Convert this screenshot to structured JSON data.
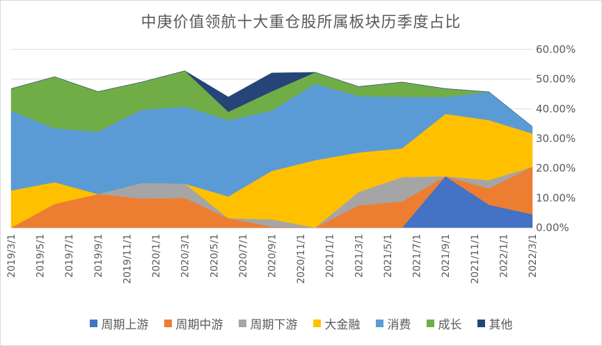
{
  "chart_data": {
    "type": "area",
    "title": "中庚价值领航十大重仓股所属板块历季度占比",
    "xlabel": "",
    "ylabel": "",
    "ylim": [
      0,
      60
    ],
    "y_ticks": [
      "0.00%",
      "10.00%",
      "20.00%",
      "30.00%",
      "40.00%",
      "50.00%",
      "60.00%"
    ],
    "x_dates": [
      "2019/3/1",
      "2019/6/1",
      "2019/9/1",
      "2019/12/1",
      "2020/3/1",
      "2020/6/1",
      "2020/9/1",
      "2020/12/1",
      "2021/3/1",
      "2021/6/1",
      "2021/9/1",
      "2021/12/1",
      "2022/3/1"
    ],
    "x_ticks": [
      "2019/3/1",
      "2019/5/1",
      "2019/7/1",
      "2019/9/1",
      "2019/11/1",
      "2020/1/1",
      "2020/3/1",
      "2020/5/1",
      "2020/7/1",
      "2020/9/1",
      "2020/11/1",
      "2021/1/1",
      "2021/3/1",
      "2021/5/1",
      "2021/7/1",
      "2021/9/1",
      "2021/11/1",
      "2022/1/1",
      "2022/3/1"
    ],
    "grid": true,
    "legend_position": "bottom",
    "series": [
      {
        "name": "周期上游",
        "color": "#4472C4",
        "values": [
          0,
          0,
          0,
          0,
          0,
          0,
          0,
          0,
          0,
          0,
          17.3,
          7.7,
          4.5
        ]
      },
      {
        "name": "周期中游",
        "color": "#ED7D31",
        "values": [
          0,
          8,
          11.3,
          9.8,
          10,
          3.2,
          0.3,
          0,
          7.5,
          8.8,
          0,
          5.5,
          16
        ]
      },
      {
        "name": "周期下游",
        "color": "#A5A5A5",
        "values": [
          0,
          0,
          0,
          5.2,
          4.8,
          0,
          2.5,
          0,
          4.5,
          8.2,
          0,
          2.8,
          0
        ]
      },
      {
        "name": "大金融",
        "color": "#FFC000",
        "values": [
          12.5,
          7.3,
          0,
          0,
          0,
          7.3,
          16.3,
          22.7,
          13.3,
          9.7,
          21,
          20.2,
          11.2
        ]
      },
      {
        "name": "消费",
        "color": "#5B9BD5",
        "values": [
          26.8,
          18.2,
          21,
          24.7,
          26,
          25.7,
          20.3,
          25.8,
          19,
          17.3,
          5.7,
          9.5,
          2.3
        ]
      },
      {
        "name": "成长",
        "color": "#70AD47",
        "values": [
          7.5,
          17.3,
          13.5,
          9.3,
          12,
          2.8,
          6.5,
          3.8,
          3.2,
          5,
          2.8,
          0,
          0
        ]
      },
      {
        "name": "其他",
        "color": "#264478",
        "values": [
          0,
          0,
          0,
          0,
          0,
          5,
          6.2,
          0,
          0,
          0,
          0,
          0,
          0
        ]
      }
    ]
  }
}
